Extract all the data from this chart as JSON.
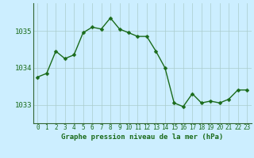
{
  "x": [
    0,
    1,
    2,
    3,
    4,
    5,
    6,
    7,
    8,
    9,
    10,
    11,
    12,
    13,
    14,
    15,
    16,
    17,
    18,
    19,
    20,
    21,
    22,
    23
  ],
  "y": [
    1033.75,
    1033.85,
    1034.45,
    1034.25,
    1034.35,
    1034.95,
    1035.1,
    1035.05,
    1035.35,
    1035.05,
    1034.95,
    1034.85,
    1034.85,
    1034.45,
    1034.0,
    1033.05,
    1032.95,
    1033.3,
    1033.05,
    1033.1,
    1033.05,
    1033.15,
    1033.4,
    1033.4
  ],
  "line_color": "#1a6b1a",
  "marker": "D",
  "marker_size": 2.5,
  "bg_color": "#cceeff",
  "grid_color": "#aacccc",
  "xlabel": "Graphe pression niveau de la mer (hPa)",
  "xlabel_fontsize": 6.5,
  "xtick_labels": [
    "0",
    "1",
    "2",
    "3",
    "4",
    "5",
    "6",
    "7",
    "8",
    "9",
    "10",
    "11",
    "12",
    "13",
    "14",
    "15",
    "16",
    "17",
    "18",
    "19",
    "20",
    "21",
    "22",
    "23"
  ],
  "ytick_labels": [
    "1033",
    "1034",
    "1035"
  ],
  "ytick_values": [
    1033,
    1034,
    1035
  ],
  "ylim": [
    1032.5,
    1035.75
  ],
  "xlim": [
    -0.5,
    23.5
  ],
  "ytick_fontsize": 6.5,
  "xtick_fontsize": 5.5,
  "border_color": "#336633",
  "linewidth": 1.0
}
